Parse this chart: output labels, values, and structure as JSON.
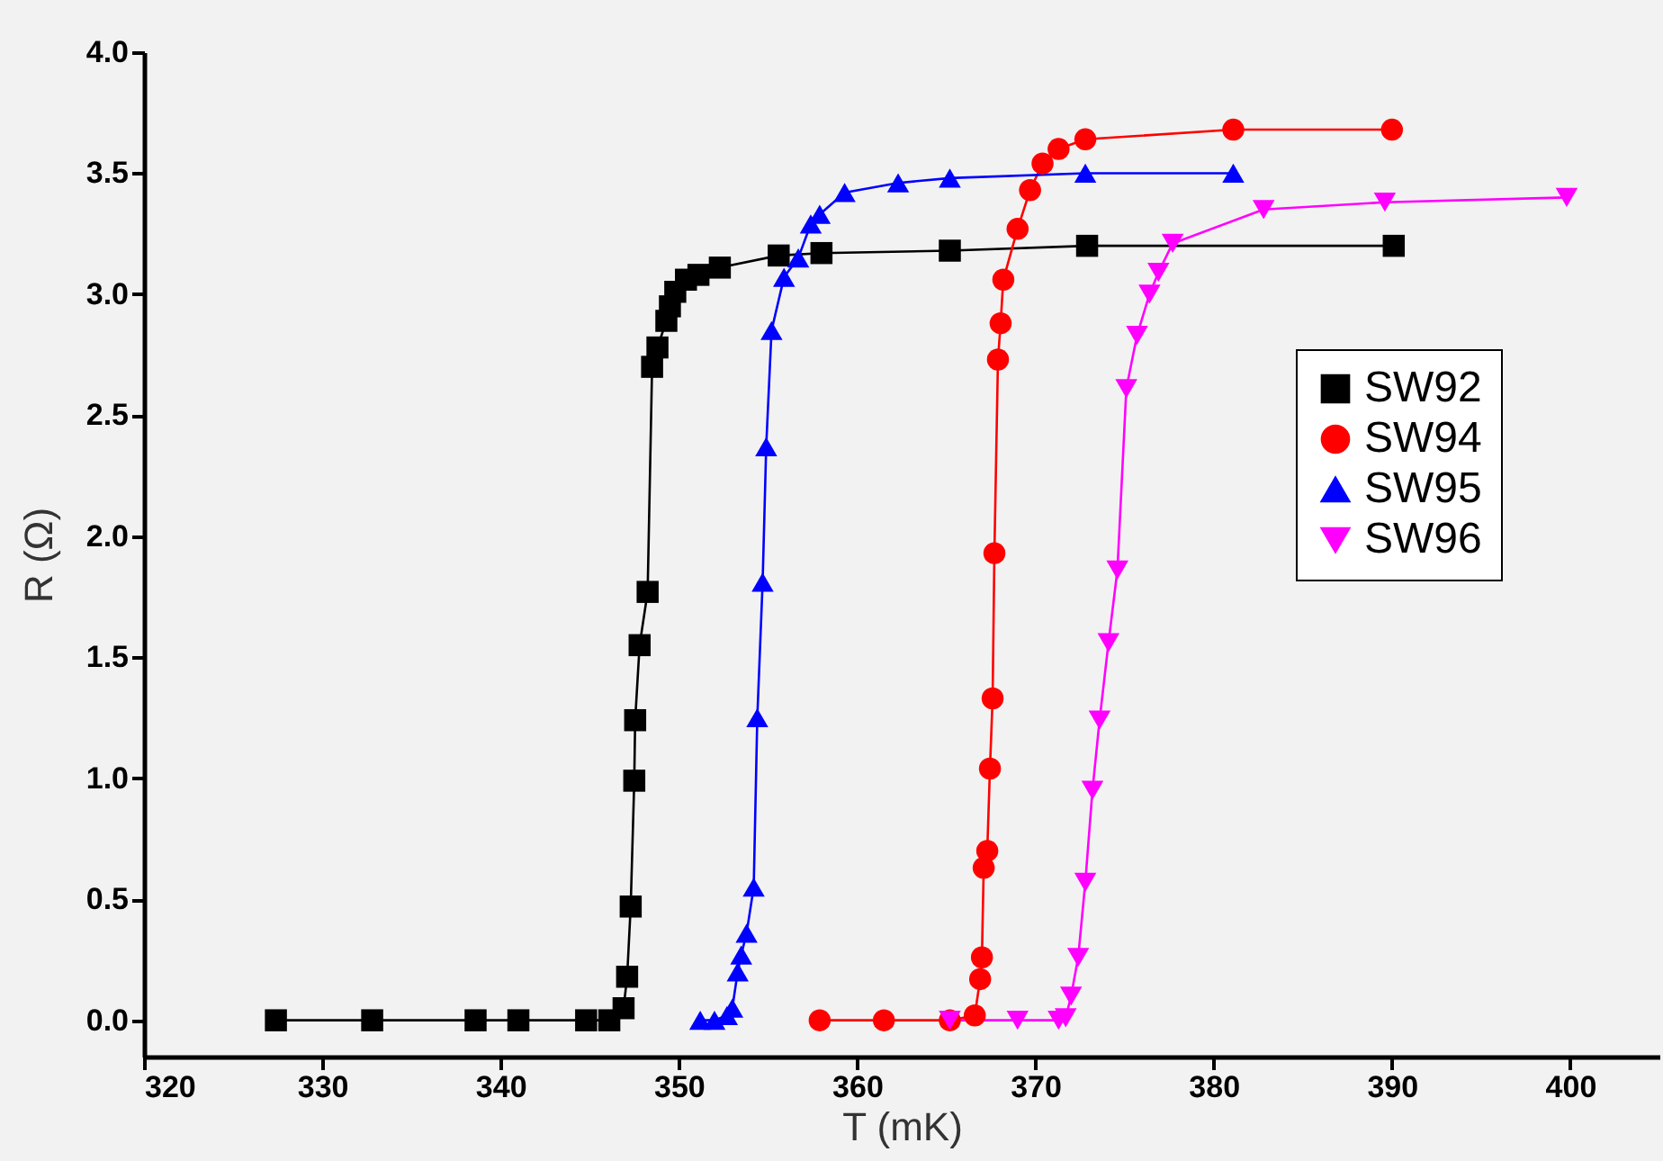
{
  "chart_data": {
    "type": "line",
    "xlabel": "T (mK)",
    "ylabel": "R (Ω)",
    "xlim": [
      320,
      405
    ],
    "xticks": [
      320,
      330,
      340,
      350,
      360,
      370,
      380,
      390,
      400
    ],
    "ylim": [
      -0.15,
      4.0
    ],
    "yticks": [
      {
        "value": 0,
        "label": "0.0"
      },
      0.5,
      {
        "value": 1,
        "label": "1.0"
      },
      1.5,
      {
        "value": 2,
        "label": "2.0"
      },
      2.5,
      {
        "value": 3,
        "label": "3.0"
      },
      3.5,
      {
        "value": 4,
        "label": "4.0"
      }
    ],
    "grid": false,
    "legend": "right",
    "series": [
      {
        "name": "SW92",
        "color": "#000000",
        "marker": "square",
        "x": [
          327.4,
          332.8,
          338.6,
          341.0,
          344.8,
          346.1,
          346.9,
          347.1,
          347.3,
          347.5,
          347.55,
          347.8,
          348.25,
          348.5,
          348.8,
          349.3,
          349.5,
          349.8,
          350.4,
          351.1,
          352.3,
          355.6,
          358.0,
          365.2,
          372.9,
          390.1
        ],
        "values": [
          0.0,
          0.0,
          0.0,
          0.0,
          0.0,
          0.0,
          0.05,
          0.18,
          0.47,
          0.99,
          1.24,
          1.55,
          1.77,
          2.7,
          2.78,
          2.89,
          2.95,
          3.01,
          3.06,
          3.08,
          3.11,
          3.16,
          3.17,
          3.18,
          3.2,
          3.2
        ]
      },
      {
        "name": "SW94",
        "color": "#ff0000",
        "marker": "circle",
        "x": [
          357.9,
          361.5,
          365.2,
          366.6,
          366.9,
          367.0,
          367.1,
          367.3,
          367.45,
          367.6,
          367.7,
          367.9,
          368.05,
          368.2,
          369.0,
          369.7,
          370.4,
          371.3,
          372.8,
          381.1,
          390.0
        ],
        "values": [
          0.0,
          0.0,
          0.0,
          0.02,
          0.17,
          0.26,
          0.63,
          0.7,
          1.04,
          1.33,
          1.93,
          2.73,
          2.88,
          3.06,
          3.27,
          3.43,
          3.54,
          3.6,
          3.64,
          3.68,
          3.68
        ]
      },
      {
        "name": "SW95",
        "color": "#0000ff",
        "marker": "triangle",
        "x": [
          351.2,
          352.0,
          352.7,
          353.0,
          353.3,
          353.5,
          353.8,
          354.2,
          354.4,
          354.7,
          354.9,
          355.2,
          355.9,
          356.7,
          357.4,
          357.9,
          359.3,
          362.3,
          365.2,
          372.8,
          381.1
        ],
        "values": [
          0.0,
          0.0,
          0.02,
          0.05,
          0.2,
          0.27,
          0.36,
          0.55,
          1.25,
          1.81,
          2.37,
          2.85,
          3.07,
          3.15,
          3.29,
          3.33,
          3.42,
          3.46,
          3.48,
          3.5,
          3.5
        ]
      },
      {
        "name": "SW96",
        "color": "#ff00ff",
        "marker": "triangle-down",
        "x": [
          365.2,
          369.0,
          371.3,
          371.7,
          372.0,
          372.4,
          372.8,
          373.2,
          373.6,
          374.1,
          374.6,
          375.1,
          375.7,
          376.4,
          376.9,
          377.7,
          382.8,
          389.6,
          399.8
        ],
        "values": [
          0.0,
          0.0,
          0.0,
          0.01,
          0.1,
          0.26,
          0.57,
          0.95,
          1.24,
          1.56,
          1.86,
          2.61,
          2.83,
          3.0,
          3.09,
          3.21,
          3.35,
          3.38,
          3.4
        ]
      }
    ]
  }
}
